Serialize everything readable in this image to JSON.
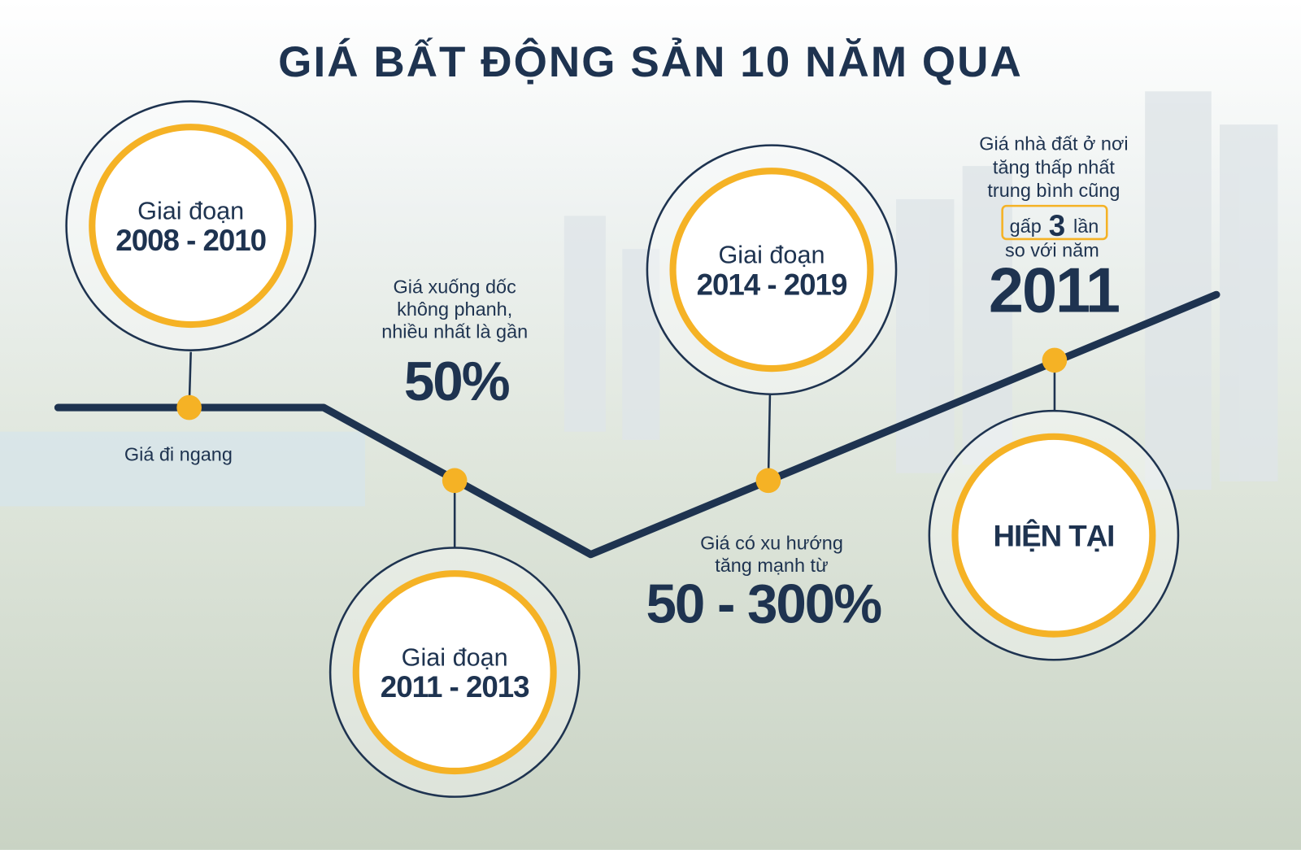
{
  "title": "GIÁ BẤT ĐỘNG SẢN 10 NĂM QUA",
  "stages": [
    {
      "label": "Giai đoạn",
      "period": "2008 - 2010",
      "note": [
        "Giá đi ngang"
      ]
    },
    {
      "label": "Giai đoạn",
      "period": "2011 - 2013",
      "note": [
        "Giá xuống dốc",
        "không phanh,",
        "nhiều nhất là gần"
      ],
      "highlight": "50%"
    },
    {
      "label": "Giai đoạn",
      "period": "2014 - 2019",
      "note": [
        "Giá có xu hướng",
        "tăng mạnh từ"
      ],
      "highlight": "50 - 300%"
    },
    {
      "period": "HIỆN TẠI",
      "note": [
        "Giá nhà đất ở nơi",
        "tăng thấp nhất",
        "trung bình cũng"
      ],
      "boxed": {
        "before": "gấp",
        "number": "3",
        "after": "lần"
      },
      "note_after": "so với năm",
      "highlight": "2011"
    }
  ]
}
